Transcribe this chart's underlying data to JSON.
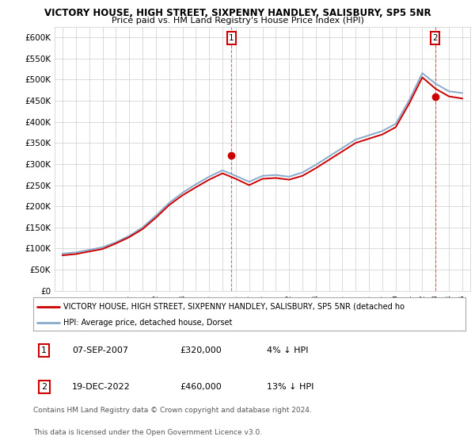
{
  "title": "VICTORY HOUSE, HIGH STREET, SIXPENNY HANDLEY, SALISBURY, SP5 5NR",
  "subtitle": "Price paid vs. HM Land Registry's House Price Index (HPI)",
  "ylim": [
    0,
    625000
  ],
  "yticks": [
    0,
    50000,
    100000,
    150000,
    200000,
    250000,
    300000,
    350000,
    400000,
    450000,
    500000,
    550000,
    600000
  ],
  "ytick_labels": [
    "£0",
    "£50K",
    "£100K",
    "£150K",
    "£200K",
    "£250K",
    "£300K",
    "£350K",
    "£400K",
    "£450K",
    "£500K",
    "£550K",
    "£600K"
  ],
  "xlim_start": 1994.4,
  "xlim_end": 2025.6,
  "red_color": "#cc0000",
  "blue_color": "#88aacc",
  "ann1_x": 2007.68,
  "ann1_y": 320000,
  "ann2_x": 2022.96,
  "ann2_y": 460000,
  "legend_line1": "VICTORY HOUSE, HIGH STREET, SIXPENNY HANDLEY, SALISBURY, SP5 5NR (detached ho",
  "legend_line2": "HPI: Average price, detached house, Dorset",
  "table_row1_num": "1",
  "table_row1_date": "07-SEP-2007",
  "table_row1_price": "£320,000",
  "table_row1_hpi": "4% ↓ HPI",
  "table_row2_num": "2",
  "table_row2_date": "19-DEC-2022",
  "table_row2_price": "£460,000",
  "table_row2_hpi": "13% ↓ HPI",
  "footer1": "Contains HM Land Registry data © Crown copyright and database right 2024.",
  "footer2": "This data is licensed under the Open Government Licence v3.0.",
  "background_color": "#ffffff",
  "grid_color": "#cccccc",
  "hpi_years": [
    1995,
    1996,
    1997,
    1998,
    1999,
    2000,
    2001,
    2002,
    2003,
    2004,
    2005,
    2006,
    2007,
    2008,
    2009,
    2010,
    2011,
    2012,
    2013,
    2014,
    2015,
    2016,
    2017,
    2018,
    2019,
    2020,
    2021,
    2022,
    2023,
    2024,
    2025
  ],
  "hpi_vals": [
    88000,
    91000,
    97000,
    103000,
    115000,
    130000,
    150000,
    178000,
    208000,
    232000,
    252000,
    270000,
    285000,
    272000,
    258000,
    272000,
    274000,
    270000,
    280000,
    298000,
    318000,
    338000,
    358000,
    368000,
    378000,
    395000,
    450000,
    515000,
    490000,
    472000,
    468000
  ],
  "red_vals": [
    84000,
    87000,
    93000,
    99000,
    112000,
    127000,
    146000,
    173000,
    203000,
    226000,
    245000,
    263000,
    278000,
    265000,
    250000,
    265000,
    267000,
    263000,
    272000,
    290000,
    310000,
    330000,
    350000,
    360000,
    370000,
    387000,
    442000,
    505000,
    478000,
    460000,
    455000
  ]
}
